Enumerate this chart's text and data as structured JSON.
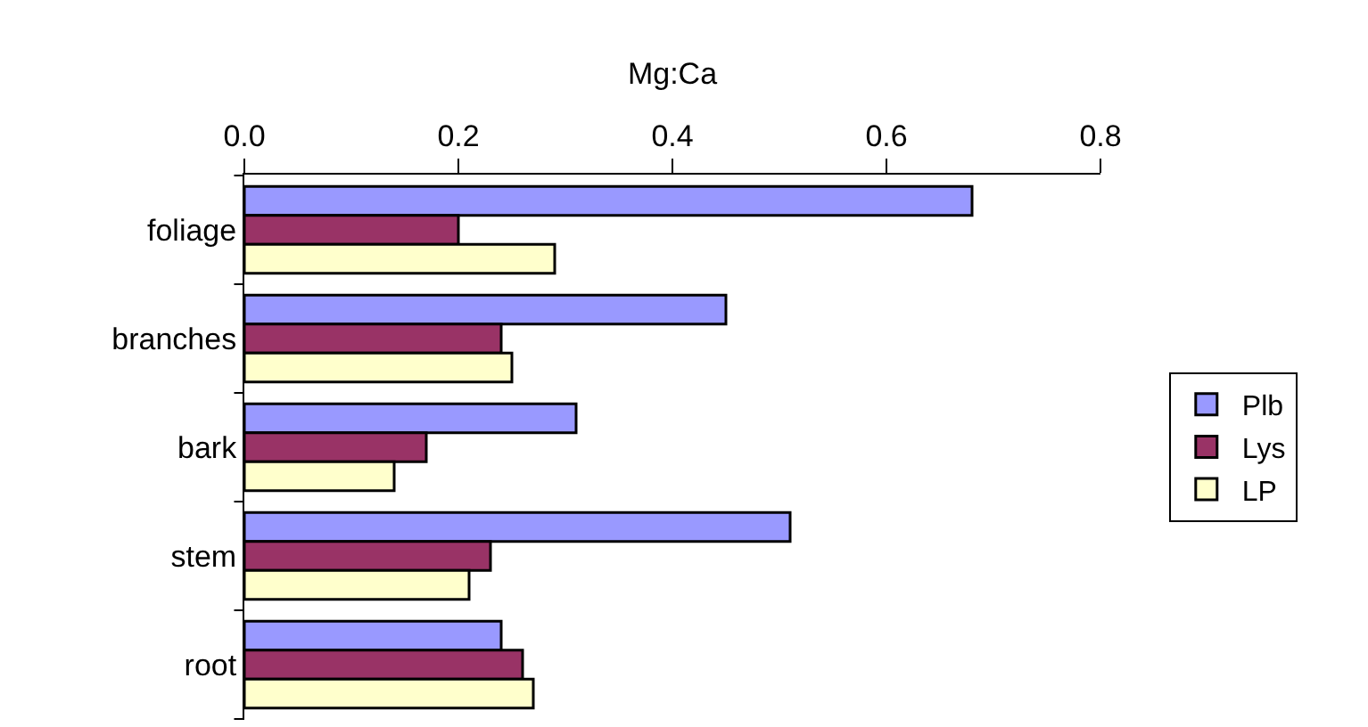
{
  "chart_data": {
    "type": "bar",
    "orientation": "horizontal",
    "xlabel": "Mg:Ca",
    "categories": [
      "foliage",
      "branches",
      "bark",
      "stem",
      "root"
    ],
    "series": [
      {
        "name": "Plb",
        "color": "#9999ff",
        "values": [
          0.68,
          0.45,
          0.31,
          0.51,
          0.24
        ]
      },
      {
        "name": "Lys",
        "color": "#993366",
        "values": [
          0.2,
          0.24,
          0.17,
          0.23,
          0.26
        ]
      },
      {
        "name": "LP",
        "color": "#ffffcc",
        "values": [
          0.29,
          0.25,
          0.14,
          0.21,
          0.27
        ]
      }
    ],
    "xlim": [
      0,
      0.8
    ],
    "xticks": [
      {
        "value": 0,
        "label": "0.0"
      },
      {
        "value": 0.2,
        "label": "0.2"
      },
      {
        "value": 0.4,
        "label": "0.4"
      },
      {
        "value": 0.6,
        "label": "0.6"
      },
      {
        "value": 0.8,
        "label": "0.8"
      }
    ],
    "legend": "right"
  }
}
